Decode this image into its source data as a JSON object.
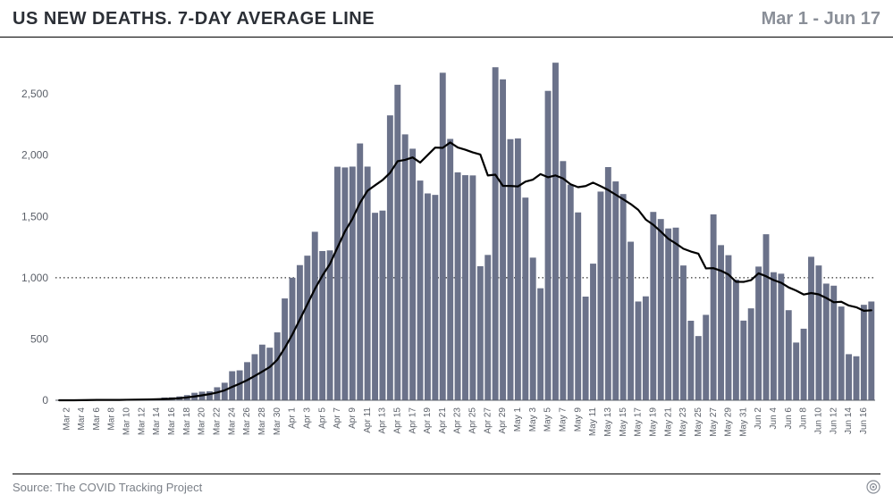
{
  "header": {
    "title": "US NEW DEATHS. 7-DAY AVERAGE LINE",
    "date_range": "Mar 1 - Jun 17"
  },
  "footer": {
    "source": "Source: The COVID Tracking Project"
  },
  "chart": {
    "type": "bar+line",
    "background_color": "#ffffff",
    "bar_color": "#6b728a",
    "line_color": "#000000",
    "line_width": 2.2,
    "grid_dotted_color": "#000000",
    "axis_text_color": "#5a5f68",
    "ylim": [
      0,
      2800
    ],
    "yticks": [
      0,
      500,
      1000,
      1500,
      2000,
      2500
    ],
    "reference_line": 1000,
    "bar_gap_ratio": 0.18,
    "x_labels": [
      "Mar 2",
      "Mar 4",
      "Mar 6",
      "Mar 8",
      "Mar 10",
      "Mar 12",
      "Mar 14",
      "Mar 16",
      "Mar 18",
      "Mar 20",
      "Mar 22",
      "Mar 24",
      "Mar 26",
      "Mar 28",
      "Mar 30",
      "Apr 1",
      "Apr 3",
      "Apr 5",
      "Apr 7",
      "Apr 9",
      "Apr 11",
      "Apr 13",
      "Apr 15",
      "Apr 17",
      "Apr 19",
      "Apr 21",
      "Apr 23",
      "Apr 25",
      "Apr 27",
      "Apr 29",
      "May 1",
      "May 3",
      "May 5",
      "May 7",
      "May 9",
      "May 11",
      "May 13",
      "May 15",
      "May 17",
      "May 19",
      "May 21",
      "May 23",
      "May 25",
      "May 27",
      "May 29",
      "May 31",
      "Jun 2",
      "Jun 4",
      "Jun 6",
      "Jun 8",
      "Jun 10",
      "Jun 12",
      "Jun 14",
      "Jun 16"
    ],
    "dates": [
      "Mar 1",
      "Mar 2",
      "Mar 3",
      "Mar 4",
      "Mar 5",
      "Mar 6",
      "Mar 7",
      "Mar 8",
      "Mar 9",
      "Mar 10",
      "Mar 11",
      "Mar 12",
      "Mar 13",
      "Mar 14",
      "Mar 15",
      "Mar 16",
      "Mar 17",
      "Mar 18",
      "Mar 19",
      "Mar 20",
      "Mar 21",
      "Mar 22",
      "Mar 23",
      "Mar 24",
      "Mar 25",
      "Mar 26",
      "Mar 27",
      "Mar 28",
      "Mar 29",
      "Mar 30",
      "Mar 31",
      "Apr 1",
      "Apr 2",
      "Apr 3",
      "Apr 4",
      "Apr 5",
      "Apr 6",
      "Apr 7",
      "Apr 8",
      "Apr 9",
      "Apr 10",
      "Apr 11",
      "Apr 12",
      "Apr 13",
      "Apr 14",
      "Apr 15",
      "Apr 16",
      "Apr 17",
      "Apr 18",
      "Apr 19",
      "Apr 20",
      "Apr 21",
      "Apr 22",
      "Apr 23",
      "Apr 24",
      "Apr 25",
      "Apr 26",
      "Apr 27",
      "Apr 28",
      "Apr 29",
      "Apr 30",
      "May 1",
      "May 2",
      "May 3",
      "May 4",
      "May 5",
      "May 6",
      "May 7",
      "May 8",
      "May 9",
      "May 10",
      "May 11",
      "May 12",
      "May 13",
      "May 14",
      "May 15",
      "May 16",
      "May 17",
      "May 18",
      "May 19",
      "May 20",
      "May 21",
      "May 22",
      "May 23",
      "May 24",
      "May 25",
      "May 26",
      "May 27",
      "May 28",
      "May 29",
      "May 30",
      "May 31",
      "Jun 1",
      "Jun 2",
      "Jun 3",
      "Jun 4",
      "Jun 5",
      "Jun 6",
      "Jun 7",
      "Jun 8",
      "Jun 9",
      "Jun 10",
      "Jun 11",
      "Jun 12",
      "Jun 13",
      "Jun 14",
      "Jun 15",
      "Jun 16",
      "Jun 17"
    ],
    "bar_values": [
      0,
      0,
      1,
      4,
      2,
      4,
      4,
      3,
      4,
      6,
      8,
      9,
      9,
      11,
      22,
      24,
      31,
      42,
      61,
      70,
      73,
      106,
      143,
      237,
      244,
      311,
      376,
      454,
      429,
      554,
      831,
      1000,
      1103,
      1180,
      1375,
      1218,
      1223,
      1906,
      1900,
      1907,
      2096,
      1907,
      1530,
      1548,
      2325,
      2575,
      2170,
      2053,
      1793,
      1688,
      1676,
      2673,
      2133,
      1860,
      1837,
      1835,
      1094,
      1186,
      2718,
      2619,
      2131,
      2137,
      1654,
      1164,
      914,
      2525,
      2755,
      1952,
      1760,
      1533,
      846,
      1115,
      1703,
      1903,
      1786,
      1683,
      1294,
      806,
      848,
      1537,
      1479,
      1402,
      1409,
      1100,
      649,
      524,
      697,
      1517,
      1266,
      1184,
      985,
      650,
      750,
      1091,
      1355,
      1045,
      1033,
      735,
      471,
      584,
      1171,
      1100,
      952,
      935,
      765,
      376,
      359,
      779,
      806
    ],
    "avg_values": [
      0,
      0,
      0,
      1,
      2,
      3,
      3,
      3,
      3,
      4,
      5,
      6,
      7,
      8,
      10,
      13,
      17,
      23,
      31,
      40,
      50,
      63,
      81,
      109,
      135,
      164,
      198,
      234,
      271,
      330,
      427,
      536,
      659,
      783,
      908,
      1017,
      1112,
      1246,
      1378,
      1481,
      1611,
      1710,
      1754,
      1797,
      1856,
      1951,
      1962,
      1982,
      1940,
      2001,
      2062,
      2060,
      2104,
      2063,
      2045,
      2023,
      2006,
      1835,
      1841,
      1750,
      1749,
      1745,
      1784,
      1801,
      1846,
      1820,
      1835,
      1810,
      1763,
      1739,
      1748,
      1776,
      1747,
      1716,
      1678,
      1640,
      1601,
      1554,
      1475,
      1432,
      1377,
      1318,
      1279,
      1237,
      1214,
      1196,
      1076,
      1078,
      1057,
      1026,
      967,
      966,
      980,
      1036,
      1012,
      981,
      959,
      921,
      895,
      863,
      875,
      864,
      835,
      800,
      804,
      773,
      759,
      730,
      734
    ]
  }
}
